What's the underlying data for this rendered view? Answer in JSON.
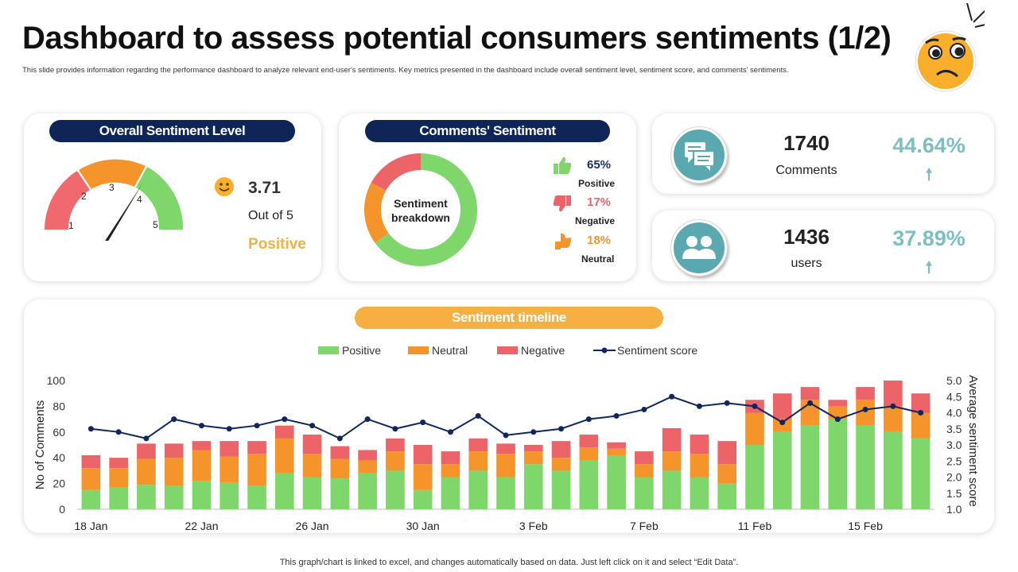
{
  "title": "Dashboard to assess potential consumers sentiments (1/2)",
  "subtitle": "This slide provides information regarding the performance dashboard to analyze relevant end-user's sentiments. Key metrics presented in the dashboard include overall sentiment level, sentiment score, and comments' sentiments.",
  "overall": {
    "header": "Overall Sentiment Level",
    "gauge_labels": [
      "1",
      "2",
      "3",
      "4",
      "5"
    ],
    "gauge_value": 3.71,
    "score": "3.71",
    "out_of": "Out of 5",
    "status": "Positive",
    "colors": {
      "red": "#f0696f",
      "orange": "#f5942b",
      "green": "#7fd66a"
    }
  },
  "comments_sentiment": {
    "header": "Comments' Sentiment",
    "center_line1": "Sentiment",
    "center_line2": "breakdown",
    "items": [
      {
        "pct": "65%",
        "label": "Positive",
        "color": "#7fd66a",
        "icon": "thumbs-up-icon",
        "value": 65
      },
      {
        "pct": "17%",
        "label": "Negative",
        "color": "#ec6468",
        "icon": "thumbs-down-icon",
        "value": 17
      },
      {
        "pct": "18%",
        "label": "Neutral",
        "color": "#f5942b",
        "icon": "neutral-hand-icon",
        "value": 18
      }
    ]
  },
  "stats": [
    {
      "value": "1740",
      "label": "Comments",
      "pct": "44.64%",
      "icon": "chat-icon"
    },
    {
      "value": "1436",
      "label": "users",
      "pct": "37.89%",
      "icon": "users-icon"
    }
  ],
  "timeline": {
    "header": "Sentiment timeline",
    "legend": [
      "Positive",
      "Neutral",
      "Negative",
      "Sentiment score"
    ]
  },
  "footer": "This graph/chart is linked to excel,  and changes automatically based on data. Just left click on it and select “Edit Data”.",
  "chart_data": {
    "type": "bar",
    "stacked": true,
    "title": "Sentiment timeline",
    "ylabel": "No of Comments",
    "y2label": "Average sentiment score",
    "ylim": [
      0,
      100
    ],
    "y2lim": [
      1.0,
      5.0
    ],
    "yticks": [
      "0",
      "20",
      "40",
      "60",
      "80",
      "100"
    ],
    "y2ticks": [
      "1.0",
      "1.5",
      "2.0",
      "2.5",
      "3.0",
      "3.5",
      "4.0",
      "4.5",
      "5.0"
    ],
    "xtick_labels": [
      "18 Jan",
      "22 Jan",
      "26 Jan",
      "30 Jan",
      "3 Feb",
      "7 Feb",
      "11 Feb",
      "15 Feb"
    ],
    "categories": [
      "18 Jan",
      "19 Jan",
      "20 Jan",
      "21 Jan",
      "22 Jan",
      "23 Jan",
      "24 Jan",
      "25 Jan",
      "26 Jan",
      "27 Jan",
      "28 Jan",
      "29 Jan",
      "30 Jan",
      "31 Jan",
      "1 Feb",
      "2 Feb",
      "3 Feb",
      "4 Feb",
      "5 Feb",
      "6 Feb",
      "7 Feb",
      "8 Feb",
      "9 Feb",
      "10 Feb",
      "11 Feb",
      "12 Feb",
      "13 Feb",
      "14 Feb",
      "15 Feb",
      "16 Feb",
      "17 Feb"
    ],
    "series": [
      {
        "name": "Positive",
        "color": "#7fd66a",
        "values": [
          15,
          17,
          19,
          18,
          22,
          21,
          18,
          28,
          25,
          24,
          28,
          30,
          15,
          25,
          30,
          25,
          35,
          30,
          38,
          42,
          25,
          30,
          25,
          20,
          50,
          60,
          65,
          70,
          65,
          60,
          55
        ]
      },
      {
        "name": "Neutral",
        "color": "#f5942b",
        "values": [
          17,
          15,
          20,
          22,
          24,
          20,
          25,
          27,
          18,
          15,
          10,
          15,
          20,
          10,
          15,
          18,
          10,
          10,
          10,
          5,
          10,
          15,
          18,
          15,
          25,
          10,
          20,
          10,
          20,
          20,
          20
        ]
      },
      {
        "name": "Negative",
        "color": "#ec6468",
        "values": [
          10,
          8,
          12,
          11,
          7,
          12,
          10,
          10,
          15,
          10,
          8,
          10,
          15,
          10,
          10,
          8,
          5,
          13,
          10,
          5,
          10,
          18,
          15,
          18,
          10,
          20,
          10,
          5,
          10,
          20,
          15
        ]
      },
      {
        "name": "Sentiment score",
        "type": "line",
        "axis": "right",
        "color": "#10265e",
        "values": [
          3.5,
          3.4,
          3.2,
          3.8,
          3.6,
          3.5,
          3.6,
          3.8,
          3.6,
          3.2,
          3.8,
          3.5,
          3.7,
          3.4,
          3.9,
          3.3,
          3.4,
          3.5,
          3.8,
          3.9,
          4.1,
          4.5,
          4.2,
          4.3,
          4.2,
          3.7,
          4.3,
          3.8,
          4.1,
          4.2,
          4.0
        ]
      }
    ]
  }
}
